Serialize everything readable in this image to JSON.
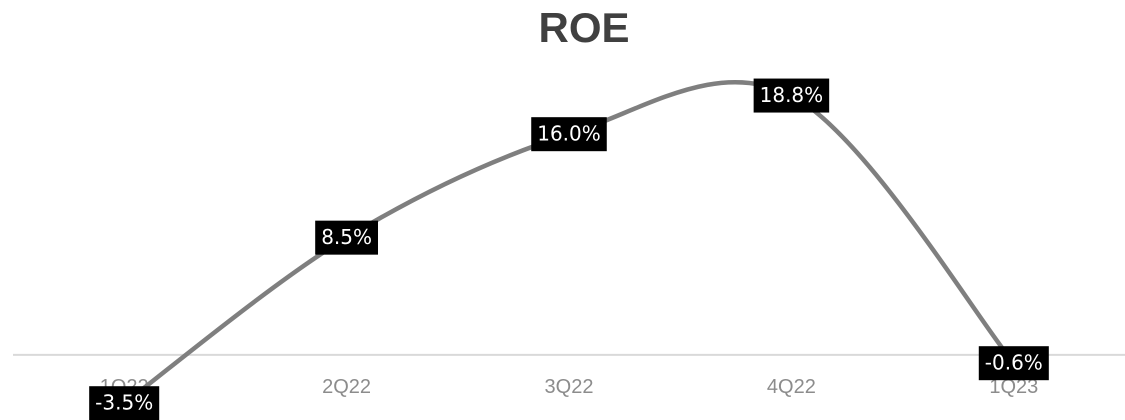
{
  "chart_data": {
    "type": "line",
    "title": "ROE",
    "categories": [
      "1Q22",
      "2Q22",
      "3Q22",
      "4Q22",
      "1Q23"
    ],
    "values": [
      -3.5,
      8.5,
      16.0,
      18.8,
      -0.6
    ],
    "value_labels": [
      "-3.5%",
      "8.5%",
      "16.0%",
      "18.8%",
      "-0.6%"
    ],
    "color": "#7f7f7f",
    "smooth": true,
    "ylim": [
      -4.5,
      20
    ]
  }
}
